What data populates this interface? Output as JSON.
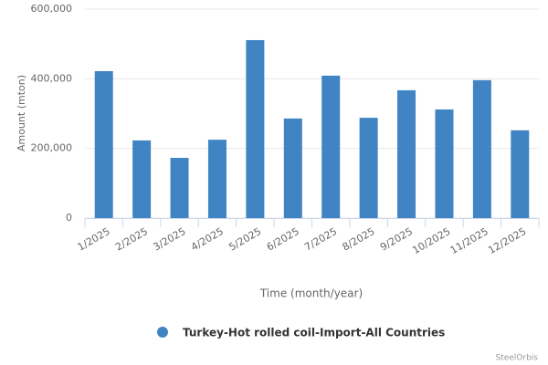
{
  "chart_data": {
    "type": "bar",
    "y_axis_label": "Amount (mton)",
    "x_axis_label": "Time (month/year)",
    "categories": [
      "1/2025",
      "2/2025",
      "3/2025",
      "4/2025",
      "5/2025",
      "6/2025",
      "7/2025",
      "8/2025",
      "9/2025",
      "10/2025",
      "11/2025",
      "12/2025"
    ],
    "series": [
      {
        "name": "Turkey-Hot rolled coil-Import-All Countries",
        "color": "#4184c4",
        "values": [
          422000,
          223000,
          173000,
          225000,
          511000,
          286000,
          409000,
          288000,
          367000,
          312000,
          396000,
          252000
        ]
      }
    ],
    "ylim": [
      0,
      600000
    ],
    "yticks": [
      0,
      {
        "value": 200000,
        "label": "200,000"
      },
      {
        "value": 400000,
        "label": "400,000"
      },
      {
        "value": 600000,
        "label": "600,000"
      }
    ],
    "grid": true,
    "credit": "SteelOrbis"
  }
}
